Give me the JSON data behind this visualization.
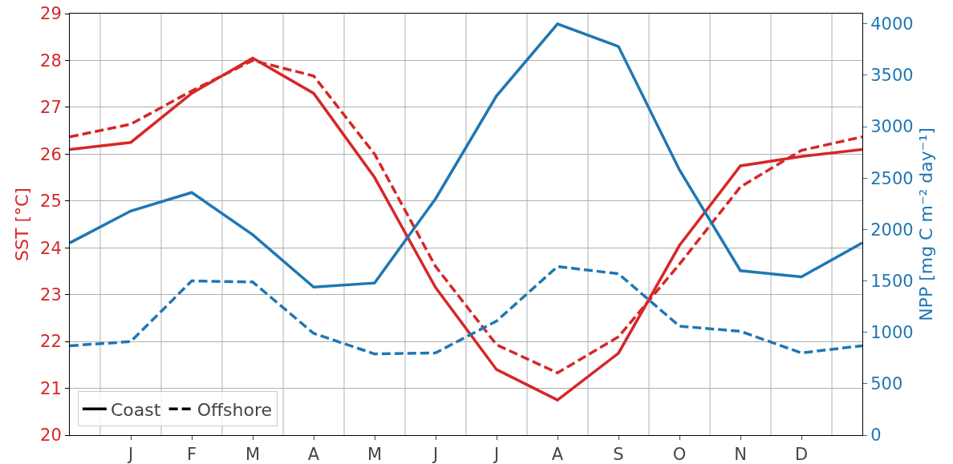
{
  "chart_data": {
    "type": "line",
    "ylabel": "SST [°C]",
    "y2label": "NPP [mg C m⁻² day⁻¹]",
    "categories": [
      null,
      "J",
      "F",
      "M",
      "A",
      "M",
      "J",
      "J",
      "A",
      "S",
      "O",
      "N",
      "D",
      null
    ],
    "series": [
      {
        "color": "#d62728",
        "line_style": "solid",
        "values": [
          26.1,
          26.25,
          27.3,
          28.05,
          27.3,
          25.5,
          23.15,
          21.4,
          20.75,
          21.75,
          24.05,
          25.75,
          25.95,
          26.1
        ]
      },
      {
        "color": "#d62728",
        "line_style": "dashed",
        "values": [
          26.37,
          26.64,
          27.35,
          28.0,
          27.67,
          26.0,
          23.6,
          21.93,
          21.33,
          22.1,
          23.65,
          25.3,
          26.08,
          26.37
        ]
      },
      {
        "color": "#1f77b4",
        "line_style": "solid",
        "axis": "y2",
        "values": [
          1870,
          2180,
          2360,
          1950,
          1440,
          1480,
          2300,
          3300,
          4000,
          3780,
          2580,
          1600,
          1540,
          1870
        ]
      },
      {
        "color": "#1f77b4",
        "line_style": "dashed",
        "axis": "y2",
        "values": [
          870,
          910,
          1500,
          1490,
          990,
          790,
          800,
          1110,
          1640,
          1570,
          1060,
          1010,
          800,
          870
        ]
      },
      {
        "name": "Coast",
        "color": "#000000",
        "line_style": "solid",
        "values": [
          null,
          null,
          null,
          null,
          null,
          null,
          null,
          null,
          null,
          null,
          null,
          null,
          null,
          null
        ]
      },
      {
        "name": "Offshore",
        "color": "#000000",
        "line_style": "dashed",
        "values": [
          null,
          null,
          null,
          null,
          null,
          null,
          null,
          null,
          null,
          null,
          null,
          null,
          null,
          null
        ]
      }
    ],
    "ylim": [
      20,
      29
    ],
    "yticks": [
      20,
      21,
      22,
      23,
      24,
      25,
      26,
      27,
      28,
      29
    ],
    "y2lim": [
      0,
      4100
    ],
    "y2ticks": [
      0,
      500,
      1000,
      1500,
      2000,
      2500,
      3000,
      3500,
      4000
    ],
    "grid": true,
    "legend": "bottom left",
    "marker": "none"
  }
}
